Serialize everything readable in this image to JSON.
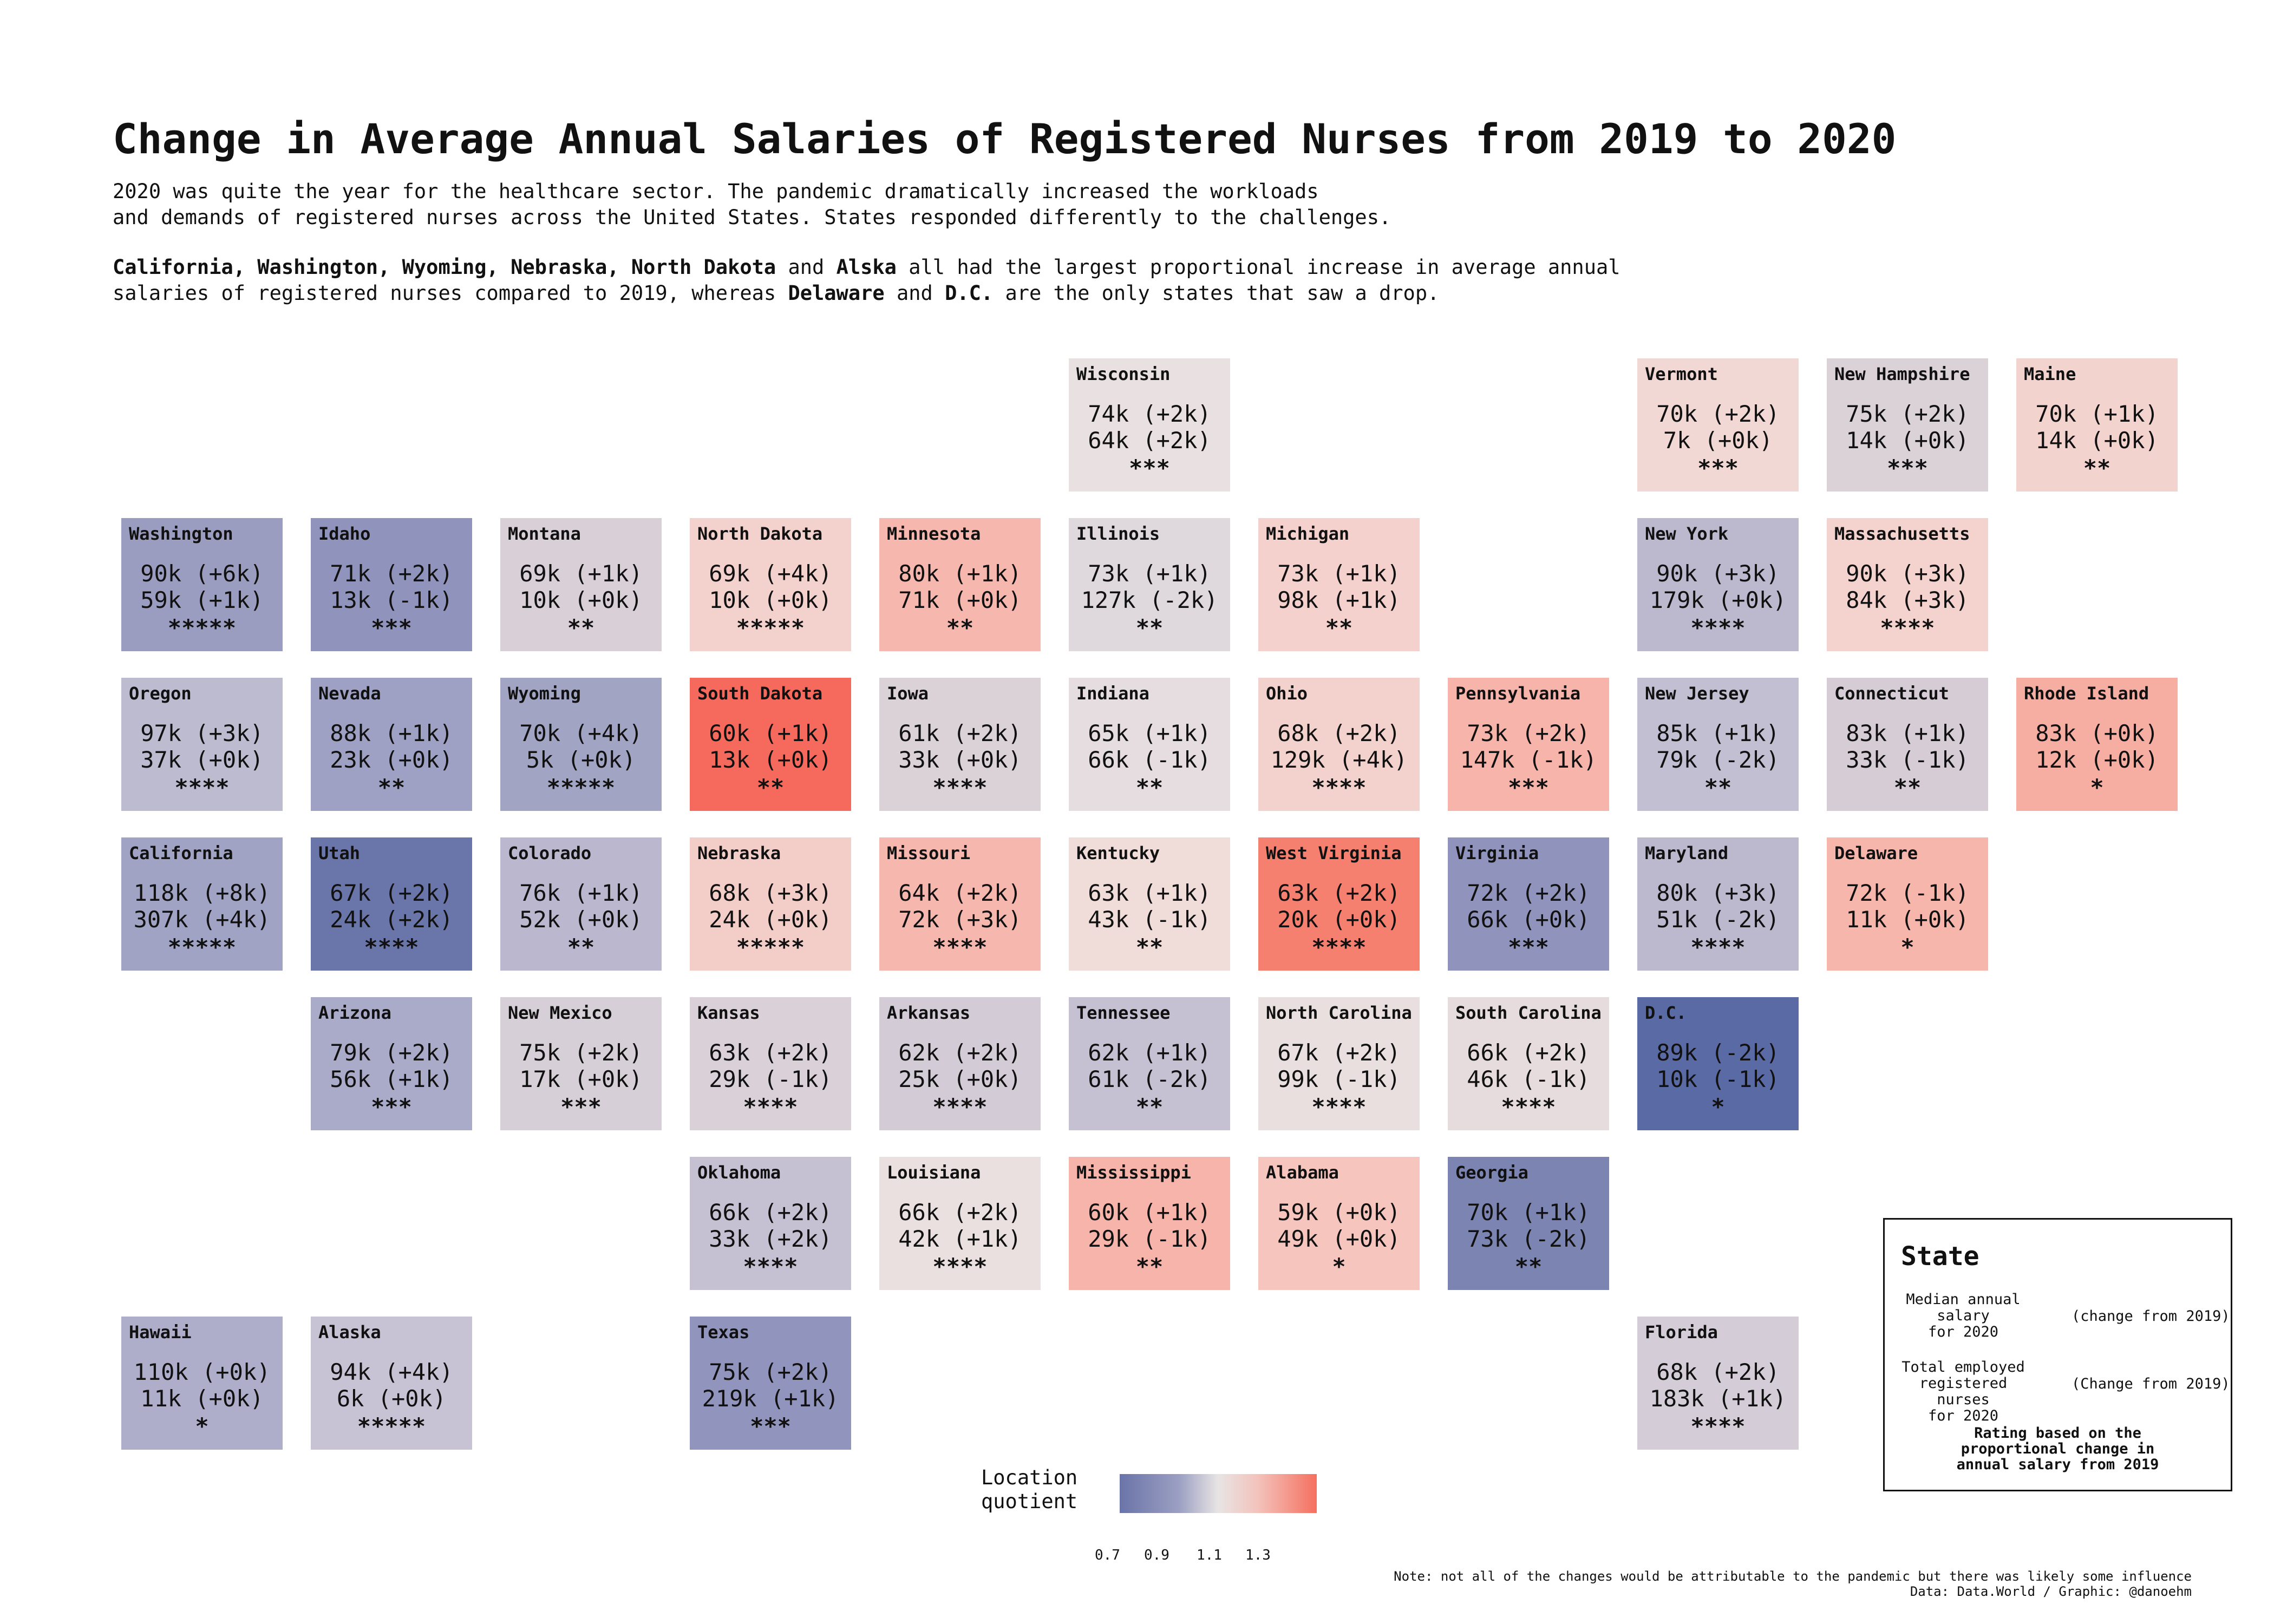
{
  "title": "Change in Average Annual Salaries of Registered Nurses from 2019 to 2020",
  "intro": {
    "line1": "2020 was quite the year for the healthcare sector. The pandemic dramatically increased the workloads",
    "line2": "and demands of registered nurses across the United States. States responded differently to the challenges."
  },
  "highlight": {
    "states_up": "California, Washington, Wyoming, Nebraska, North Dakota",
    "and1": " and ",
    "alaska": "Alska",
    "rest1": " all had the largest proportional increase in average annual",
    "line2_a": "salaries of registered nurses compared to 2019, whereas ",
    "delaware": "Delaware",
    "and2": " and ",
    "dc": "D.C.",
    "line2_b": " are the only states that saw a drop."
  },
  "states": [
    {
      "name": "Wisconsin",
      "salary": "74k (+2k)",
      "employed": "64k (+2k)",
      "rating": "***",
      "color": "#e9e1e1"
    },
    {
      "name": "Vermont",
      "salary": "70k (+2k)",
      "employed": "7k (+0k)",
      "rating": "***",
      "color": "#f1d8d4"
    },
    {
      "name": "New Hampshire",
      "salary": "75k (+2k)",
      "employed": "14k (+0k)",
      "rating": "***",
      "color": "#dbd2d8"
    },
    {
      "name": "Maine",
      "salary": "70k (+1k)",
      "employed": "14k (+0k)",
      "rating": "**",
      "color": "#f3d3ce"
    },
    {
      "name": "Washington",
      "salary": "90k (+6k)",
      "employed": "59k (+1k)",
      "rating": "*****",
      "color": "#9b9dc0"
    },
    {
      "name": "Idaho",
      "salary": "71k (+2k)",
      "employed": "13k (-1k)",
      "rating": "***",
      "color": "#9094bc"
    },
    {
      "name": "Montana",
      "salary": "69k (+1k)",
      "employed": "10k (+0k)",
      "rating": "**",
      "color": "#d8cfd7"
    },
    {
      "name": "North Dakota",
      "salary": "69k (+4k)",
      "employed": "10k (+0k)",
      "rating": "*****",
      "color": "#f3d1cc"
    },
    {
      "name": "Minnesota",
      "salary": "80k (+1k)",
      "employed": "71k (+0k)",
      "rating": "**",
      "color": "#f6b8ae"
    },
    {
      "name": "Illinois",
      "salary": "73k (+1k)",
      "employed": "127k (-2k)",
      "rating": "**",
      "color": "#dfd8dc"
    },
    {
      "name": "Michigan",
      "salary": "73k (+1k)",
      "employed": "98k (+1k)",
      "rating": "**",
      "color": "#f4d1cc"
    },
    {
      "name": "New York",
      "salary": "90k (+3k)",
      "employed": "179k (+0k)",
      "rating": "****",
      "color": "#bcb9cf"
    },
    {
      "name": "Massachusetts",
      "salary": "90k (+3k)",
      "employed": "84k (+3k)",
      "rating": "****",
      "color": "#f4d2cd"
    },
    {
      "name": "Oregon",
      "salary": "97k (+3k)",
      "employed": "37k (+0k)",
      "rating": "****",
      "color": "#bdbbd0"
    },
    {
      "name": "Nevada",
      "salary": "88k (+1k)",
      "employed": "23k (+0k)",
      "rating": "**",
      "color": "#9ea1c3"
    },
    {
      "name": "Wyoming",
      "salary": "70k (+4k)",
      "employed": "5k (+0k)",
      "rating": "*****",
      "color": "#a2a4c4"
    },
    {
      "name": "South Dakota",
      "salary": "60k (+1k)",
      "employed": "13k (+0k)",
      "rating": "**",
      "color": "#f56a5c"
    },
    {
      "name": "Iowa",
      "salary": "61k (+2k)",
      "employed": "33k (+0k)",
      "rating": "****",
      "color": "#dbd2d8"
    },
    {
      "name": "Indiana",
      "salary": "65k (+1k)",
      "employed": "66k (-1k)",
      "rating": "**",
      "color": "#e5dddf"
    },
    {
      "name": "Ohio",
      "salary": "68k (+2k)",
      "employed": "129k (+4k)",
      "rating": "****",
      "color": "#f3d1cc"
    },
    {
      "name": "Pennsylvania",
      "salary": "73k (+2k)",
      "employed": "147k (-1k)",
      "rating": "***",
      "color": "#f6b4aa"
    },
    {
      "name": "New Jersey",
      "salary": "85k (+1k)",
      "employed": "79k (-2k)",
      "rating": "**",
      "color": "#c3bfd2"
    },
    {
      "name": "Connecticut",
      "salary": "83k (+1k)",
      "employed": "33k (-1k)",
      "rating": "**",
      "color": "#d5ccd6"
    },
    {
      "name": "Rhode Island",
      "salary": "83k (+0k)",
      "employed": "12k (+0k)",
      "rating": "*",
      "color": "#f6ada2"
    },
    {
      "name": "California",
      "salary": "118k (+8k)",
      "employed": "307k (+4k)",
      "rating": "*****",
      "color": "#a1a3c4"
    },
    {
      "name": "Utah",
      "salary": "67k (+2k)",
      "employed": "24k (+2k)",
      "rating": "****",
      "color": "#6a76aa"
    },
    {
      "name": "Colorado",
      "salary": "76k (+1k)",
      "employed": "52k (+0k)",
      "rating": "**",
      "color": "#bab7ce"
    },
    {
      "name": "Nebraska",
      "salary": "68k (+3k)",
      "employed": "24k (+0k)",
      "rating": "*****",
      "color": "#f3cdc7"
    },
    {
      "name": "Missouri",
      "salary": "64k (+2k)",
      "employed": "72k (+3k)",
      "rating": "****",
      "color": "#f6b8ae"
    },
    {
      "name": "Kentucky",
      "salary": "63k (+1k)",
      "employed": "43k (-1k)",
      "rating": "**",
      "color": "#f0dcd9"
    },
    {
      "name": "West Virginia",
      "salary": "63k (+2k)",
      "employed": "20k (+0k)",
      "rating": "****",
      "color": "#f6806f"
    },
    {
      "name": "Virginia",
      "salary": "72k (+2k)",
      "employed": "66k (+0k)",
      "rating": "***",
      "color": "#9094bc"
    },
    {
      "name": "Maryland",
      "salary": "80k (+3k)",
      "employed": "51k (-2k)",
      "rating": "****",
      "color": "#bcb9cf"
    },
    {
      "name": "Delaware",
      "salary": "72k (-1k)",
      "employed": "11k (+0k)",
      "rating": "*",
      "color": "#f6b6ac"
    },
    {
      "name": "Arizona",
      "salary": "79k (+2k)",
      "employed": "56k (+1k)",
      "rating": "***",
      "color": "#aaaac9"
    },
    {
      "name": "New Mexico",
      "salary": "75k (+2k)",
      "employed": "17k (+0k)",
      "rating": "***",
      "color": "#d7cfd7"
    },
    {
      "name": "Kansas",
      "salary": "63k (+2k)",
      "employed": "29k (-1k)",
      "rating": "****",
      "color": "#d9d0d8"
    },
    {
      "name": "Arkansas",
      "salary": "62k (+2k)",
      "employed": "25k (+0k)",
      "rating": "****",
      "color": "#d3cbd5"
    },
    {
      "name": "Tennessee",
      "salary": "62k (+1k)",
      "employed": "61k (-2k)",
      "rating": "**",
      "color": "#c5c1d3"
    },
    {
      "name": "North Carolina",
      "salary": "67k (+2k)",
      "employed": "99k (-1k)",
      "rating": "****",
      "color": "#e9dfdf"
    },
    {
      "name": "South Carolina",
      "salary": "66k (+2k)",
      "employed": "46k (-1k)",
      "rating": "****",
      "color": "#e6dcdd"
    },
    {
      "name": "D.C.",
      "salary": "89k (-2k)",
      "employed": "10k (-1k)",
      "rating": "*",
      "color": "#5a6aa4"
    },
    {
      "name": "Oklahoma",
      "salary": "66k (+2k)",
      "employed": "33k (+2k)",
      "rating": "****",
      "color": "#c5c1d3"
    },
    {
      "name": "Louisiana",
      "salary": "66k (+2k)",
      "employed": "42k (+1k)",
      "rating": "****",
      "color": "#e9e0df"
    },
    {
      "name": "Mississippi",
      "salary": "60k (+1k)",
      "employed": "29k (-1k)",
      "rating": "**",
      "color": "#f6b4aa"
    },
    {
      "name": "Alabama",
      "salary": "59k (+0k)",
      "employed": "49k (+0k)",
      "rating": "*",
      "color": "#f5c5be"
    },
    {
      "name": "Georgia",
      "salary": "70k (+1k)",
      "employed": "73k (-2k)",
      "rating": "**",
      "color": "#7c84b2"
    },
    {
      "name": "Hawaii",
      "salary": "110k (+0k)",
      "employed": "11k (+0k)",
      "rating": "*",
      "color": "#aeadca"
    },
    {
      "name": "Alaska",
      "salary": "94k (+4k)",
      "employed": "6k (+0k)",
      "rating": "*****",
      "color": "#c7c3d4"
    },
    {
      "name": "Texas",
      "salary": "75k (+2k)",
      "employed": "219k (+1k)",
      "rating": "***",
      "color": "#9194bc"
    },
    {
      "name": "Florida",
      "salary": "68k (+2k)",
      "employed": "183k (+1k)",
      "rating": "****",
      "color": "#d4ccd6"
    }
  ],
  "colorbar": {
    "title_line1": "Location",
    "title_line2": "quotient",
    "ticks": [
      "0.7",
      "0.9",
      "1.1",
      "1.3"
    ],
    "colors": [
      "#6a74a8",
      "#e8e4e4",
      "#f5705f"
    ]
  },
  "legend": {
    "title": "State",
    "salary_label": "Median annual\nsalary\nfor 2020",
    "salary_change": "(change from 2019)",
    "employed_label": "Total employed\nregistered nurses\nfor 2020",
    "employed_change": "(Change from 2019)",
    "rating_label": "Rating based on the\nproportional change in\nannual salary from 2019"
  },
  "footer": {
    "note": "Note: not all of the changes would be attributable to the pandemic but there was likely some influence",
    "credit": "Data: Data.World / Graphic: @danoehm"
  }
}
